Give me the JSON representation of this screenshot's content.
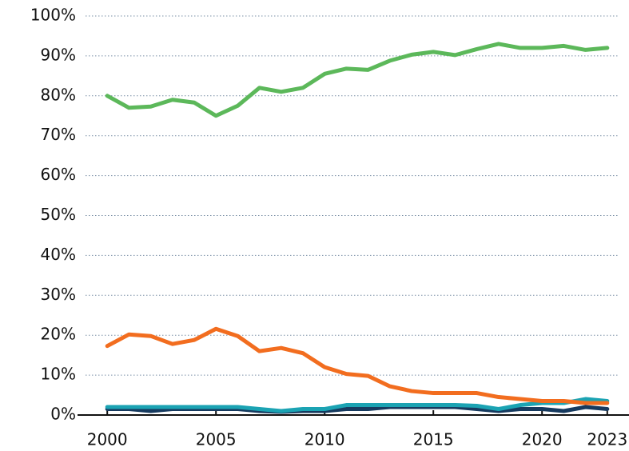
{
  "chart_data": {
    "type": "line",
    "x": [
      2000,
      2001,
      2002,
      2003,
      2004,
      2005,
      2006,
      2007,
      2008,
      2009,
      2010,
      2011,
      2012,
      2013,
      2014,
      2015,
      2016,
      2017,
      2018,
      2019,
      2020,
      2021,
      2022,
      2023
    ],
    "series": [
      {
        "color": "#5cb85a",
        "values": [
          80,
          77,
          77.3,
          79,
          78.3,
          75,
          77.5,
          82,
          81,
          82,
          85.5,
          86.8,
          86.5,
          88.8,
          90.3,
          91,
          90.2,
          91.7,
          93,
          92,
          92,
          92.5,
          91.5,
          92
        ]
      },
      {
        "color": "#f26d1f",
        "values": [
          17.3,
          20.2,
          19.8,
          17.8,
          18.8,
          21.6,
          19.8,
          16,
          16.8,
          15.5,
          12,
          10.3,
          9.8,
          7.2,
          6,
          5.5,
          5.5,
          5.5,
          4.5,
          4,
          3.5,
          3.5,
          3,
          3
        ]
      },
      {
        "color": "#1ba3b3",
        "values": [
          2,
          2,
          2,
          2,
          2,
          2,
          2,
          1.5,
          1,
          1.5,
          1.5,
          2.5,
          2.5,
          2.5,
          2.5,
          2.5,
          2.5,
          2.3,
          1.5,
          2.5,
          3,
          3,
          4,
          3.5
        ]
      },
      {
        "color": "#163a5f",
        "values": [
          1.5,
          1.5,
          1,
          1.5,
          1.5,
          1.5,
          1.5,
          1,
          0.8,
          1,
          1,
          1.5,
          1.5,
          2,
          2,
          2,
          2,
          1.5,
          1,
          1.5,
          1.5,
          1,
          2,
          1.5
        ]
      }
    ],
    "xlim": [
      1999,
      2024
    ],
    "xticks": [
      2000,
      2005,
      2010,
      2015,
      2020,
      2023
    ],
    "ylim": [
      0,
      100
    ],
    "yticks": [
      {
        "value": 0,
        "label": "0%"
      },
      {
        "value": 10,
        "label": "10%"
      },
      {
        "value": 20,
        "label": "20%"
      },
      {
        "value": 30,
        "label": "30%"
      },
      {
        "value": 40,
        "label": "40%"
      },
      {
        "value": 50,
        "label": "50%"
      },
      {
        "value": 60,
        "label": "60%"
      },
      {
        "value": 70,
        "label": "70%"
      },
      {
        "value": 80,
        "label": "80%"
      },
      {
        "value": 90,
        "label": "90%"
      },
      {
        "value": 100,
        "label": "100%"
      }
    ],
    "grid": true
  }
}
